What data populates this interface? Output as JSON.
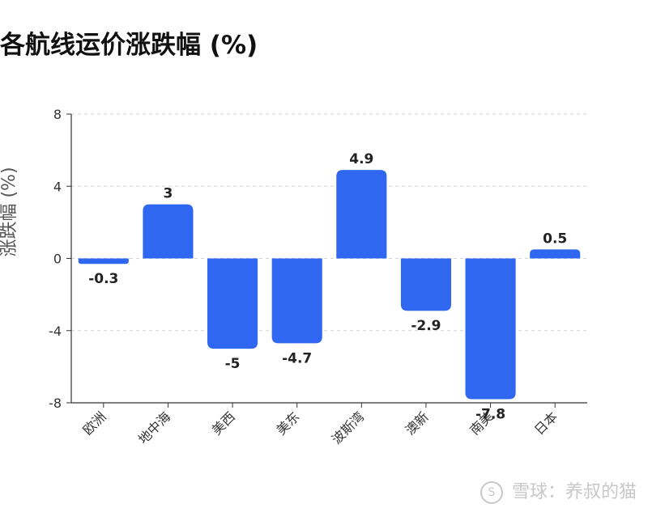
{
  "chart_data": {
    "type": "bar",
    "title": "各航线运价涨跌幅 (%)",
    "ylabel": "涨跌幅 (%)",
    "xlabel": "",
    "categories": [
      "欧洲",
      "地中海",
      "美西",
      "美东",
      "波斯湾",
      "澳新",
      "南美",
      "日本"
    ],
    "values": [
      -0.3,
      3,
      -5,
      -4.7,
      4.9,
      -2.9,
      -7.8,
      0.5
    ],
    "data_labels": [
      "-0.3",
      "3",
      "-5",
      "-4.7",
      "4.9",
      "-2.9",
      "-7.8",
      "0.5"
    ],
    "ylim": [
      -8,
      8
    ],
    "yticks": [
      -8,
      -4,
      0,
      4,
      8
    ],
    "grid": true,
    "bar_color": "#2F67F0"
  },
  "watermark": {
    "logo": "S",
    "text": "雪球：养叔的猫"
  }
}
